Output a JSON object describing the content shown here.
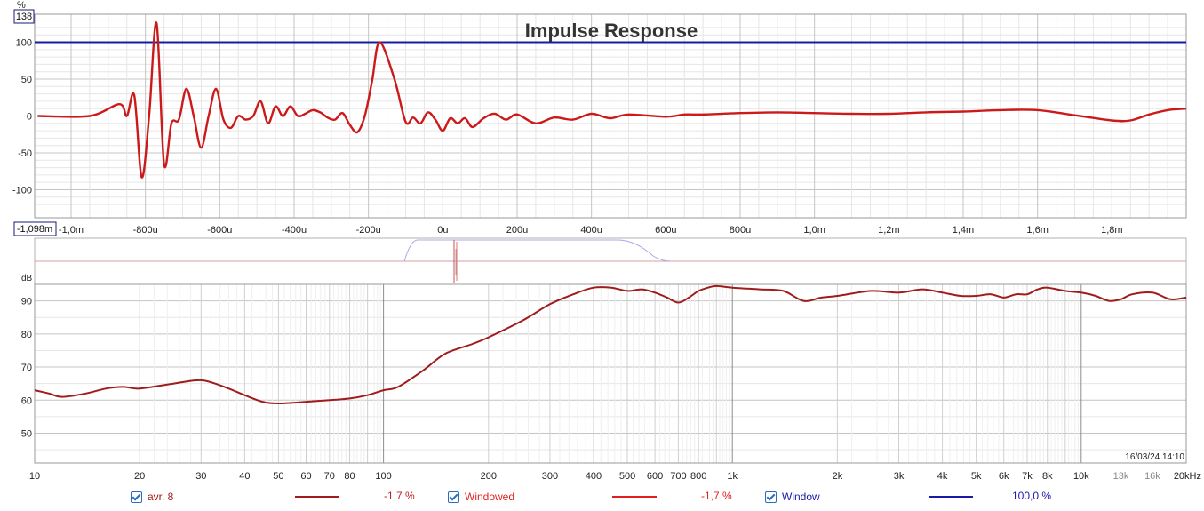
{
  "impulse_chart": {
    "title": "Impulse Response",
    "y_unit": "%",
    "y_top_box": "138",
    "x_left_box": "-1,098m",
    "y_tick_labels": [
      "100",
      "50",
      "0",
      "-50",
      "-100"
    ],
    "x_tick_labels": [
      "-1,0m",
      "-800u",
      "-600u",
      "-400u",
      "-200u",
      "0u",
      "200u",
      "400u",
      "600u",
      "800u",
      "1,0m",
      "1,2m",
      "1,4m",
      "1,6m",
      "1,8m"
    ]
  },
  "window_panel": {
    "y_unit": "dB"
  },
  "freq_chart": {
    "timestamp": "16/03/24 14:10",
    "y_tick_labels": [
      "90",
      "80",
      "70",
      "60",
      "50"
    ],
    "x_tick_labels": [
      "10",
      "20",
      "30",
      "40",
      "50",
      "60",
      "70",
      "80",
      "100",
      "200",
      "300",
      "400",
      "500",
      "600",
      "700",
      "800",
      "1k",
      "2k",
      "3k",
      "4k",
      "5k",
      "6k",
      "7k",
      "8k",
      "10k",
      "13k",
      "16k",
      "20kHz"
    ]
  },
  "legend": [
    {
      "label": "avr. 8",
      "value": "-1,7 %",
      "color": "#a01c1c",
      "checked": true
    },
    {
      "label": "Windowed",
      "value": "-1,7 %",
      "color": "#e02020",
      "checked": true
    },
    {
      "label": "Window",
      "value": "100,0 %",
      "color": "#1a1aa8",
      "checked": true
    }
  ],
  "colors": {
    "impulse": "#cc1a1a",
    "window_line": "#1a1aa8",
    "freq": "#a01c1c",
    "grid": "#d8d8d8"
  },
  "chart_data": [
    {
      "type": "line",
      "title": "Impulse Response",
      "x_unit": "s",
      "xlim": [
        -0.001098,
        0.002
      ],
      "ylim": [
        -138,
        138
      ],
      "series": [
        {
          "name": "Windowed",
          "x": [
            -0.00109,
            -0.00095,
            -0.00087,
            -0.00085,
            -0.00083,
            -0.00081,
            -0.00079,
            -0.00077,
            -0.00075,
            -0.00073,
            -0.00071,
            -0.00069,
            -0.00067,
            -0.00065,
            -0.00063,
            -0.00061,
            -0.00059,
            -0.00057,
            -0.00055,
            -0.00053,
            -0.00051,
            -0.00049,
            -0.00047,
            -0.00045,
            -0.00043,
            -0.00041,
            -0.00039,
            -0.00037,
            -0.00035,
            -0.00033,
            -0.00031,
            -0.00029,
            -0.00027,
            -0.00025,
            -0.00023,
            -0.00021,
            -0.00019,
            -0.00017,
            -0.00013,
            -0.0001,
            -8e-05,
            -6e-05,
            -4e-05,
            -2e-05,
            0,
            2e-05,
            4e-05,
            6e-05,
            8e-05,
            0.00011,
            0.00014,
            0.00017,
            0.0002,
            0.00025,
            0.0003,
            0.00035,
            0.0004,
            0.00045,
            0.0005,
            0.0006,
            0.00065,
            0.0007,
            0.0008,
            0.0009,
            0.001,
            0.0011,
            0.0012,
            0.0013,
            0.0014,
            0.0015,
            0.0016,
            0.0017,
            0.0018,
            0.00185,
            0.0019,
            0.00195,
            0.002
          ],
          "y": [
            0,
            0,
            16,
            0,
            28,
            -83,
            0,
            126,
            -65,
            -10,
            -5,
            37,
            0,
            -43,
            0,
            37,
            -5,
            -16,
            0,
            -5,
            0,
            20,
            -10,
            13,
            0,
            13,
            0,
            3,
            8,
            5,
            -2,
            -5,
            4,
            -12,
            -22,
            0,
            48,
            100,
            50,
            -8,
            -2,
            -10,
            5,
            -5,
            -20,
            -3,
            -10,
            -3,
            -15,
            -3,
            3,
            -5,
            2,
            -10,
            -2,
            -5,
            3,
            -3,
            2,
            -1,
            2,
            2,
            4,
            5,
            4,
            3,
            3,
            5,
            6,
            8,
            8,
            1,
            -6,
            -6,
            2,
            8,
            10
          ]
        },
        {
          "name": "Window",
          "x": [
            -0.001098,
            0.002
          ],
          "y": [
            100,
            100
          ]
        }
      ]
    },
    {
      "type": "line",
      "x_scale": "log",
      "xlim": [
        10,
        20000
      ],
      "ylim": [
        41,
        95
      ],
      "series": [
        {
          "name": "avr. 8",
          "x": [
            10,
            11,
            12,
            14,
            16,
            18,
            20,
            25,
            30,
            35,
            40,
            45,
            50,
            60,
            70,
            80,
            90,
            100,
            110,
            130,
            150,
            180,
            200,
            250,
            300,
            350,
            400,
            450,
            500,
            550,
            600,
            650,
            700,
            750,
            800,
            850,
            900,
            1000,
            1200,
            1400,
            1600,
            1800,
            2000,
            2500,
            3000,
            3500,
            4000,
            4500,
            5000,
            5500,
            6000,
            6500,
            7000,
            7500,
            8000,
            9000,
            10000,
            11000,
            12000,
            13000,
            14000,
            16000,
            18000,
            20000
          ],
          "y": [
            63,
            62,
            61,
            62,
            63.5,
            64,
            63.5,
            65,
            66,
            64,
            61.5,
            59.5,
            59,
            59.5,
            60,
            60.5,
            61.5,
            63,
            64,
            69,
            74,
            77,
            79,
            84,
            89,
            92,
            94,
            94,
            93,
            93.5,
            92.5,
            91,
            89.5,
            91,
            93,
            94,
            94.5,
            94,
            93.5,
            93,
            90,
            91,
            91.5,
            93,
            92.5,
            93.5,
            92.5,
            91.5,
            91.5,
            92,
            91,
            92,
            92,
            93.5,
            94,
            93,
            92.5,
            91.5,
            90,
            90.5,
            92,
            92.5,
            90.5,
            91
          ]
        }
      ]
    }
  ]
}
